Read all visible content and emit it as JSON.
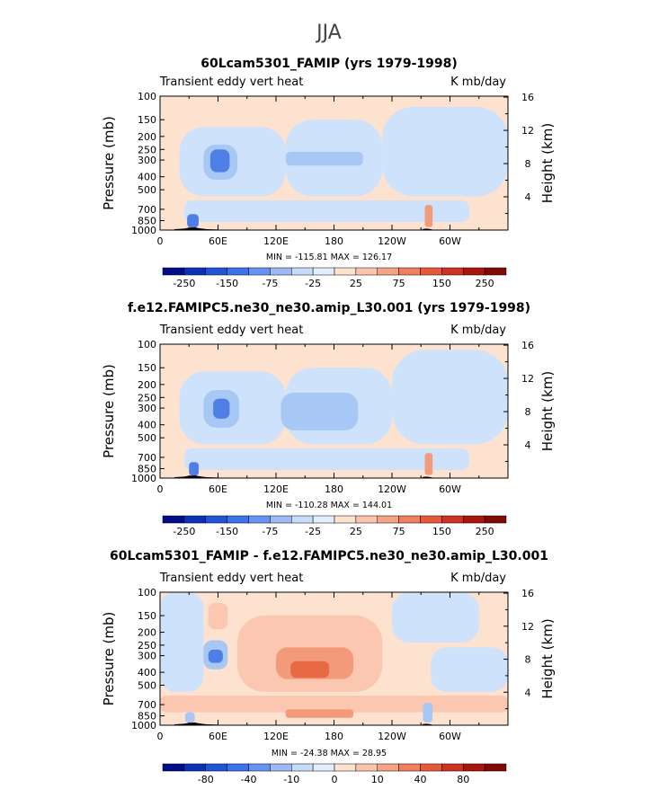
{
  "figure": {
    "season": "JJA",
    "colors": {
      "background": "#fde2d0",
      "neg_light": "#cfe2fb",
      "neg_mid": "#a7c7f5",
      "neg_strong": "#4f7fe6",
      "pos_light": "#fbc7b0",
      "pos_mid": "#f39a7a",
      "pos_strong": "#e86a44",
      "topography": "#000000"
    }
  },
  "chart_data": [
    {
      "type": "heatmap",
      "title": "60Lcam5301_FAMIP (yrs 1979-1998)",
      "left_label": "Transient eddy vert heat",
      "right_label": "K mb/day",
      "ylabel": "Pressure (mb)",
      "ylabel_right": "Height (km)",
      "xlabel": "",
      "x_ticks": [
        "0",
        "60E",
        "120E",
        "180",
        "120W",
        "60W"
      ],
      "x_range": [
        0,
        360
      ],
      "y_ticks": [
        "100",
        "150",
        "200",
        "250",
        "300",
        "400",
        "500",
        "700",
        "850",
        "1000"
      ],
      "y_range": [
        100,
        1000
      ],
      "y_scale": "log",
      "y_right_ticks": [
        "4",
        "8",
        "12",
        "16"
      ],
      "stats": "MIN = -115.81   MAX = 126.17",
      "colorbar_labels": [
        "-250",
        "-150",
        "-75",
        "-25",
        "25",
        "75",
        "150",
        "250"
      ],
      "colorbar_colors": [
        "#000e86",
        "#0a32b4",
        "#1f55d6",
        "#3b73ea",
        "#6594f2",
        "#9cb9f6",
        "#c7dbfa",
        "#e2edfd",
        "#fde2d0",
        "#fac5ac",
        "#f5a386",
        "#ee7f5f",
        "#e45a3b",
        "#cd3322",
        "#a81610",
        "#7e0b06"
      ],
      "regions": [
        {
          "lon": [
            20,
            130
          ],
          "p": [
            170,
            560
          ],
          "level": "neg_light"
        },
        {
          "lon": [
            130,
            230
          ],
          "p": [
            150,
            560
          ],
          "level": "neg_light"
        },
        {
          "lon": [
            230,
            360
          ],
          "p": [
            120,
            560
          ],
          "level": "neg_light"
        },
        {
          "lon": [
            25,
            320
          ],
          "p": [
            600,
            870
          ],
          "level": "neg_light"
        },
        {
          "lon": [
            45,
            80
          ],
          "p": [
            230,
            420
          ],
          "level": "neg_mid"
        },
        {
          "lon": [
            52,
            72
          ],
          "p": [
            250,
            370
          ],
          "level": "neg_strong"
        },
        {
          "lon": [
            130,
            210
          ],
          "p": [
            260,
            330
          ],
          "level": "neg_mid"
        },
        {
          "lon": [
            28,
            40
          ],
          "p": [
            760,
            960
          ],
          "level": "neg_strong"
        },
        {
          "lon": [
            274,
            282
          ],
          "p": [
            650,
            950
          ],
          "level": "pos_mid"
        }
      ]
    },
    {
      "type": "heatmap",
      "title": "f.e12.FAMIPC5.ne30_ne30.amip_L30.001 (yrs 1979-1998)",
      "left_label": "Transient eddy vert heat",
      "right_label": "K mb/day",
      "ylabel": "Pressure (mb)",
      "ylabel_right": "Height (km)",
      "xlabel": "",
      "x_ticks": [
        "0",
        "60E",
        "120E",
        "180",
        "120W",
        "60W"
      ],
      "x_range": [
        0,
        360
      ],
      "y_ticks": [
        "100",
        "150",
        "200",
        "250",
        "300",
        "400",
        "500",
        "700",
        "850",
        "1000"
      ],
      "y_range": [
        100,
        1000
      ],
      "y_scale": "log",
      "y_right_ticks": [
        "4",
        "8",
        "12",
        "16"
      ],
      "stats": "MIN = -110.28   MAX = 144.01",
      "colorbar_labels": [
        "-250",
        "-150",
        "-75",
        "-25",
        "25",
        "75",
        "150",
        "250"
      ],
      "colorbar_colors": [
        "#000e86",
        "#0a32b4",
        "#1f55d6",
        "#3b73ea",
        "#6594f2",
        "#9cb9f6",
        "#c7dbfa",
        "#e2edfd",
        "#fde2d0",
        "#fac5ac",
        "#f5a386",
        "#ee7f5f",
        "#e45a3b",
        "#cd3322",
        "#a81610",
        "#7e0b06"
      ],
      "regions": [
        {
          "lon": [
            20,
            130
          ],
          "p": [
            160,
            560
          ],
          "level": "neg_light"
        },
        {
          "lon": [
            130,
            240
          ],
          "p": [
            150,
            560
          ],
          "level": "neg_light"
        },
        {
          "lon": [
            240,
            360
          ],
          "p": [
            110,
            560
          ],
          "level": "neg_light"
        },
        {
          "lon": [
            25,
            320
          ],
          "p": [
            600,
            870
          ],
          "level": "neg_light"
        },
        {
          "lon": [
            45,
            82
          ],
          "p": [
            220,
            420
          ],
          "level": "neg_mid"
        },
        {
          "lon": [
            55,
            72
          ],
          "p": [
            255,
            360
          ],
          "level": "neg_strong"
        },
        {
          "lon": [
            125,
            205
          ],
          "p": [
            230,
            440
          ],
          "level": "neg_mid"
        },
        {
          "lon": [
            30,
            40
          ],
          "p": [
            760,
            960
          ],
          "level": "neg_strong"
        },
        {
          "lon": [
            274,
            282
          ],
          "p": [
            650,
            950
          ],
          "level": "pos_mid"
        }
      ]
    },
    {
      "type": "heatmap",
      "title": "60Lcam5301_FAMIP - f.e12.FAMIPC5.ne30_ne30.amip_L30.001",
      "left_label": "Transient eddy vert heat",
      "right_label": "K mb/day",
      "ylabel": "Pressure (mb)",
      "ylabel_right": "Height (km)",
      "xlabel": "",
      "x_ticks": [
        "0",
        "60E",
        "120E",
        "180",
        "120W",
        "60W"
      ],
      "x_range": [
        0,
        360
      ],
      "y_ticks": [
        "100",
        "150",
        "200",
        "250",
        "300",
        "400",
        "500",
        "700",
        "850",
        "1000"
      ],
      "y_range": [
        100,
        1000
      ],
      "y_scale": "log",
      "y_right_ticks": [
        "4",
        "8",
        "12",
        "16"
      ],
      "stats": "MIN = -24.38   MAX = 28.95",
      "colorbar_labels": [
        "-80",
        "-40",
        "-10",
        "0",
        "10",
        "40",
        "80"
      ],
      "colorbar_colors": [
        "#000e86",
        "#0a32b4",
        "#1f55d6",
        "#3b73ea",
        "#6594f2",
        "#9cb9f6",
        "#c7dbfa",
        "#e2edfd",
        "#fde2d0",
        "#fac5ac",
        "#f5a386",
        "#ee7f5f",
        "#e45a3b",
        "#cd3322",
        "#a81610",
        "#7e0b06"
      ],
      "regions": [
        {
          "lon": [
            0,
            45
          ],
          "p": [
            100,
            560
          ],
          "level": "neg_light"
        },
        {
          "lon": [
            240,
            330
          ],
          "p": [
            100,
            240
          ],
          "level": "neg_light"
        },
        {
          "lon": [
            280,
            360
          ],
          "p": [
            260,
            560
          ],
          "level": "neg_light"
        },
        {
          "lon": [
            50,
            70
          ],
          "p": [
            120,
            190
          ],
          "level": "pos_light"
        },
        {
          "lon": [
            80,
            230
          ],
          "p": [
            150,
            560
          ],
          "level": "pos_light"
        },
        {
          "lon": [
            120,
            200
          ],
          "p": [
            260,
            450
          ],
          "level": "pos_mid"
        },
        {
          "lon": [
            135,
            175
          ],
          "p": [
            330,
            440
          ],
          "level": "pos_strong"
        },
        {
          "lon": [
            45,
            70
          ],
          "p": [
            230,
            380
          ],
          "level": "neg_mid"
        },
        {
          "lon": [
            50,
            65
          ],
          "p": [
            270,
            340
          ],
          "level": "neg_strong"
        },
        {
          "lon": [
            0,
            360
          ],
          "p": [
            600,
            800
          ],
          "level": "pos_light"
        },
        {
          "lon": [
            130,
            200
          ],
          "p": [
            760,
            880
          ],
          "level": "pos_mid"
        },
        {
          "lon": [
            26,
            36
          ],
          "p": [
            800,
            960
          ],
          "level": "neg_mid"
        },
        {
          "lon": [
            272,
            282
          ],
          "p": [
            680,
            950
          ],
          "level": "neg_mid"
        }
      ]
    }
  ]
}
